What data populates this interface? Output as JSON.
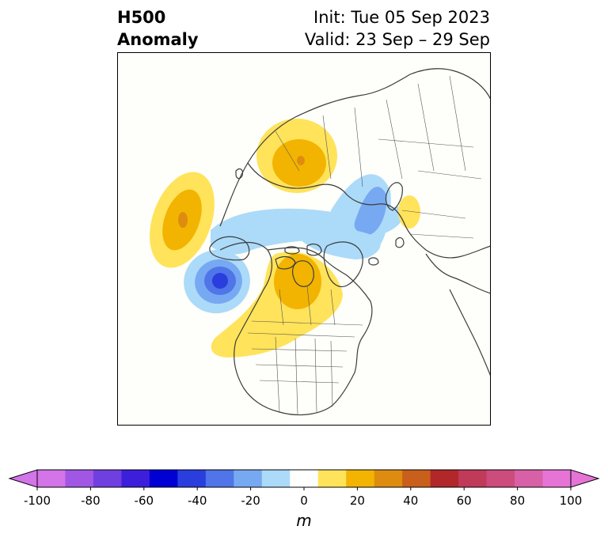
{
  "title": {
    "left_line1": "H500",
    "left_line2": "Anomaly",
    "init": "Init: Tue 05 Sep 2023",
    "valid": "Valid: 23 Sep – 29 Sep"
  },
  "map": {
    "projection": "north-polar-stereographic",
    "anomalies": [
      {
        "region": "north-pacific-ridge",
        "sign": "positive",
        "peak_m": 40
      },
      {
        "region": "gulf-of-alaska-trough",
        "sign": "negative",
        "peak_m": -60
      },
      {
        "region": "western-canada-ridge",
        "sign": "positive",
        "peak_m": 40
      },
      {
        "region": "siberia-ridge",
        "sign": "positive",
        "peak_m": 50
      },
      {
        "region": "arctic-trough",
        "sign": "negative",
        "peak_m": -40
      },
      {
        "region": "europe-ridge",
        "sign": "positive",
        "peak_m": 20
      }
    ]
  },
  "colorbar": {
    "unit": "m",
    "ticks": [
      "-100",
      "-80",
      "-60",
      "-40",
      "-20",
      "0",
      "20",
      "40",
      "60",
      "80",
      "100"
    ],
    "levels": [
      -100,
      -90,
      -80,
      -70,
      -60,
      -50,
      -40,
      -30,
      -20,
      -10,
      10,
      20,
      30,
      40,
      50,
      60,
      70,
      80,
      90,
      100
    ],
    "colors": [
      "#d374e8",
      "#a157e4",
      "#6f3fdf",
      "#3d1edb",
      "#0000d4",
      "#2a3ede",
      "#4f75e8",
      "#77a9f2",
      "#acdaf9",
      "#ffffff",
      "#ffe35a",
      "#f2b400",
      "#de8c10",
      "#c85f1a",
      "#b2282a",
      "#c03a5a",
      "#cc4c7e",
      "#d860a6",
      "#e674d6"
    ],
    "under_color": "#d374e8",
    "over_color": "#e674d6"
  }
}
